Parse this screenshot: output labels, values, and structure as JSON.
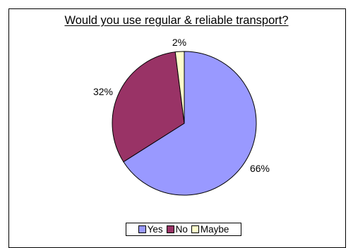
{
  "chart_data": {
    "type": "pie",
    "title": "Would you use regular & reliable transport?",
    "slices": [
      {
        "label": "Yes",
        "value": 66,
        "display": "66%",
        "color": "#9999ff"
      },
      {
        "label": "No",
        "value": 32,
        "display": "32%",
        "color": "#993366"
      },
      {
        "label": "Maybe",
        "value": 2,
        "display": "2%",
        "color": "#ffffcc"
      }
    ],
    "legend_position": "bottom"
  }
}
